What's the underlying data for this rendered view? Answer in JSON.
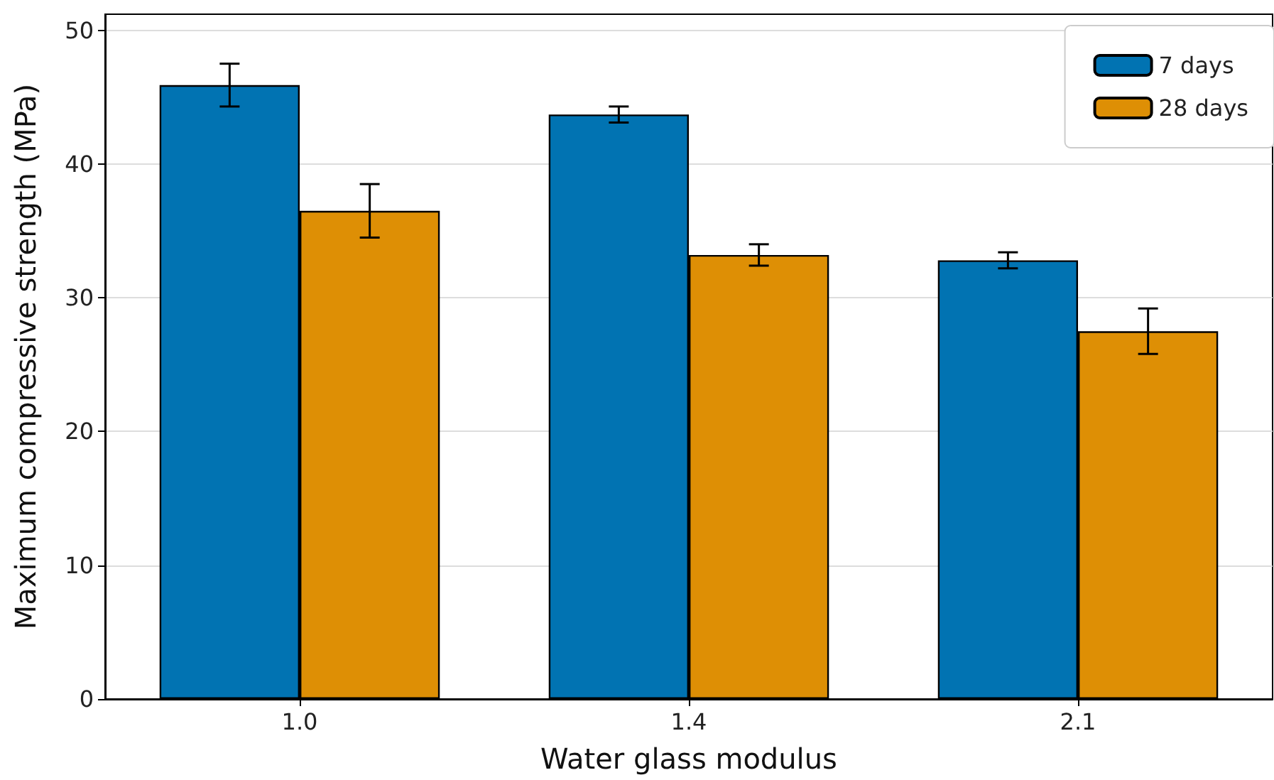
{
  "chart_data": {
    "type": "bar",
    "xlabel": "Water glass modulus",
    "ylabel": "Maximum compressive strength (MPa)",
    "categories": [
      "1.0",
      "1.4",
      "2.1"
    ],
    "series": [
      {
        "name": "7 days",
        "color": "#0173b2",
        "values": [
          45.9,
          43.7,
          32.8
        ],
        "errors": [
          1.6,
          0.6,
          0.6
        ]
      },
      {
        "name": "28 days",
        "color": "#de8f05",
        "values": [
          36.5,
          33.2,
          27.5
        ],
        "errors": [
          2.0,
          0.8,
          1.7
        ]
      }
    ],
    "ylim": [
      0,
      51.2
    ],
    "yticks": [
      0,
      10,
      20,
      30,
      40,
      50
    ],
    "grid": "y",
    "legend": "top right"
  }
}
